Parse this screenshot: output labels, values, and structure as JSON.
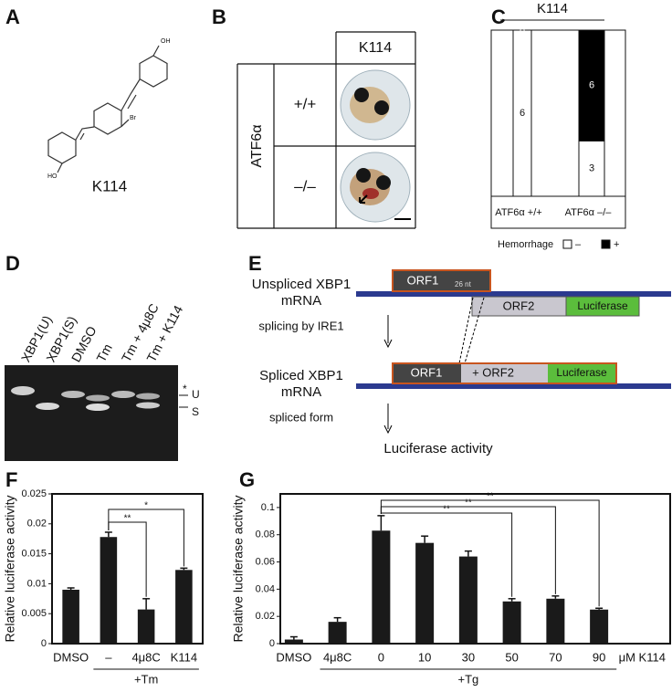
{
  "figure": {
    "panel_letters": [
      "A",
      "B",
      "C",
      "D",
      "E",
      "F",
      "G"
    ],
    "A": {
      "compound": "K114",
      "atoms": [
        "OH",
        "Br",
        "HO"
      ]
    },
    "B": {
      "column_header": "K114",
      "row_header": "ATF6α",
      "genotypes": [
        "+/+",
        "–/–"
      ]
    },
    "D": {
      "lanes": [
        "XBP1(U)",
        "XBP1(S)",
        "DMSO",
        "Tm",
        "Tm + 4μ8C",
        "Tm + K114"
      ],
      "band_labels": [
        "*",
        "U",
        "S"
      ]
    },
    "E": {
      "unspliced_label": [
        "Unspliced XBP1",
        "mRNA"
      ],
      "orf1": "ORF1",
      "insert": "26 nt",
      "orf2": "ORF2",
      "reporter": "Luciferase",
      "step1": "splicing by IRE1",
      "spliced_label": [
        "Spliced XBP1",
        "mRNA"
      ],
      "orf1_spliced": "ORF1",
      "fused": "+ ORF2",
      "reporter_spliced": "Luciferase",
      "step2": "spliced form",
      "readout": "Luciferase activity"
    }
  },
  "chart_data": [
    {
      "type": "stacked_bar",
      "title": "K114",
      "categories": [
        "ATF6α +/+",
        "ATF6α –/–"
      ],
      "legend_title": "Hemorrhage",
      "series": [
        {
          "name": "–",
          "color": "#ffffff",
          "values": [
            6,
            3
          ]
        },
        {
          "name": "+",
          "color": "#000000",
          "values": [
            0,
            6
          ]
        }
      ]
    },
    {
      "type": "bar",
      "ylabel": "Relative luciferase activity",
      "categories": [
        "DMSO",
        "–",
        "4μ8C",
        "K114"
      ],
      "values": [
        0.009,
        0.0178,
        0.0057,
        0.0123
      ],
      "errors": [
        0.0003,
        0.0008,
        0.0018,
        0.0003
      ],
      "color": "#1a1a1a",
      "ylim": [
        0,
        0.025
      ],
      "yticks": [
        0,
        0.005,
        0.01,
        0.015,
        0.02,
        0.025
      ],
      "group_label": "+Tm",
      "group": [
        1,
        3
      ],
      "comparisons": [
        {
          "from": 1,
          "to": 2,
          "label": "**"
        },
        {
          "from": 1,
          "to": 3,
          "label": "*"
        }
      ]
    },
    {
      "type": "bar",
      "ylabel": "Relative luciferase activity",
      "categories": [
        "DMSO",
        "4μ8C",
        "0",
        "10",
        "30",
        "50",
        "70",
        "90"
      ],
      "values": [
        0.003,
        0.016,
        0.083,
        0.074,
        0.064,
        0.031,
        0.033,
        0.025
      ],
      "errors": [
        0.002,
        0.003,
        0.011,
        0.005,
        0.004,
        0.002,
        0.002,
        0.001
      ],
      "color": "#1a1a1a",
      "ylim": [
        0,
        0.11
      ],
      "yticks": [
        0,
        0.02,
        0.04,
        0.06,
        0.08,
        0.1
      ],
      "unit_label": "μM K114",
      "group_label": "+Tg",
      "group": [
        1,
        7
      ],
      "comparisons": [
        {
          "from": 2,
          "to": 5,
          "label": "**"
        },
        {
          "from": 2,
          "to": 6,
          "label": "**"
        },
        {
          "from": 2,
          "to": 7,
          "label": "**"
        }
      ]
    }
  ]
}
